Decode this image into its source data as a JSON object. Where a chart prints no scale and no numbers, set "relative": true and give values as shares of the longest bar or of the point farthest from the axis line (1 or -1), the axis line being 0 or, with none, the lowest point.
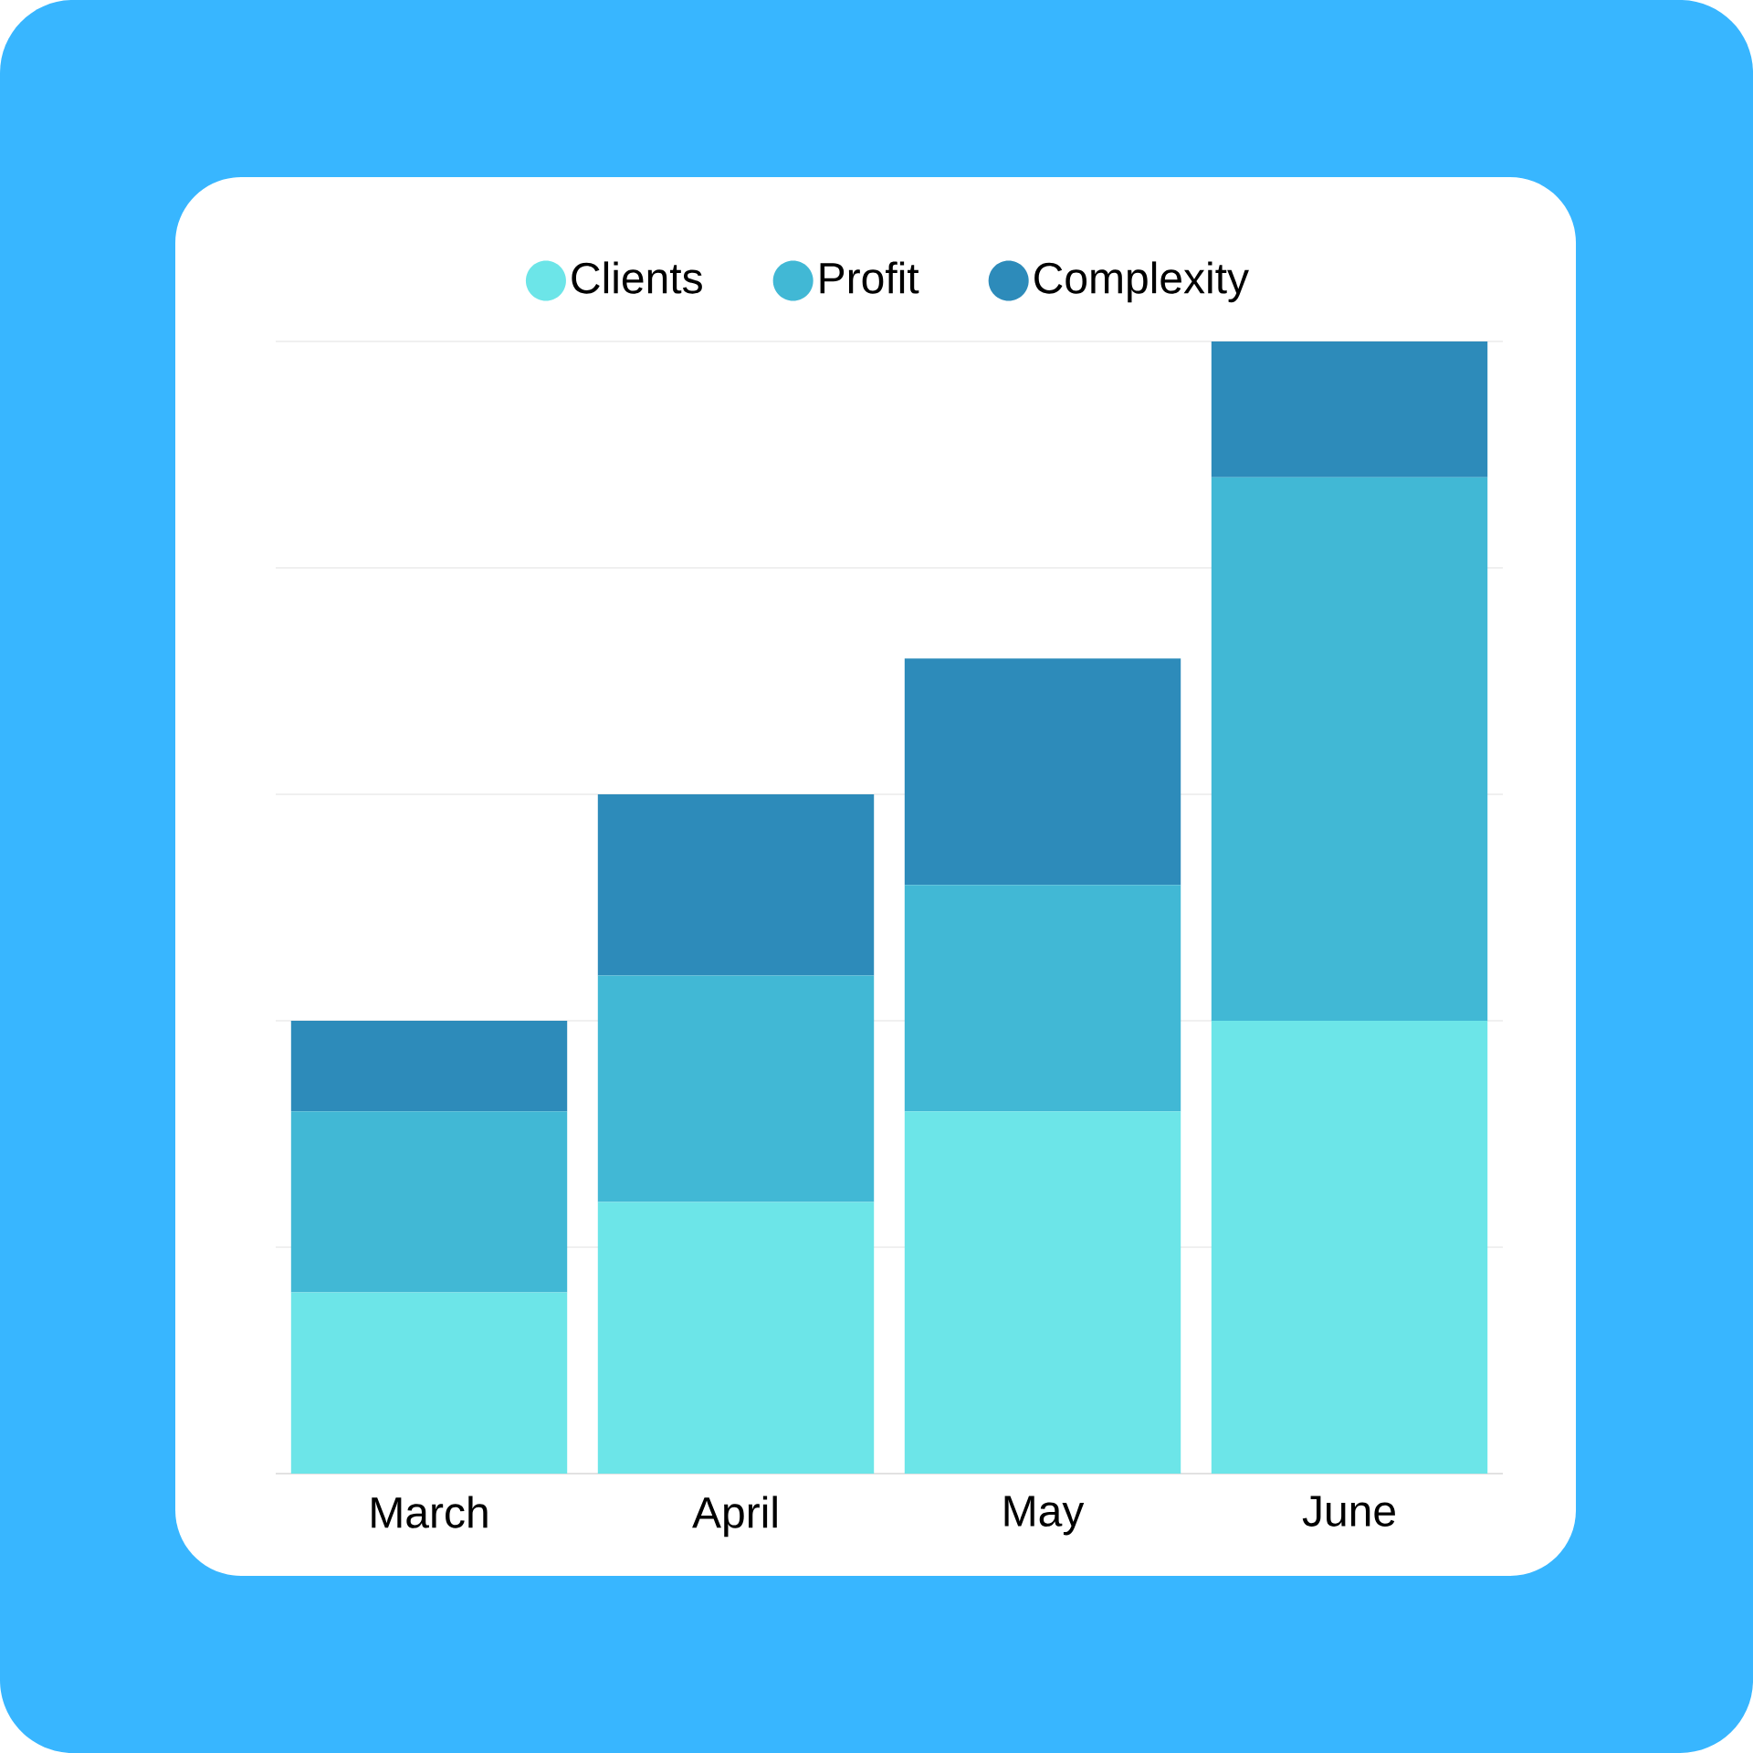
{
  "chart_data": {
    "type": "bar",
    "stacked": true,
    "relative": true,
    "categories": [
      "March",
      "April",
      "May",
      "June"
    ],
    "series": [
      {
        "name": "Clients",
        "color": "#6ce5e8",
        "values": [
          0.16,
          0.24,
          0.32,
          0.4
        ]
      },
      {
        "name": "Profit",
        "color": "#41b8d5",
        "values": [
          0.16,
          0.2,
          0.2,
          0.48
        ]
      },
      {
        "name": "Complexity",
        "color": "#2d8bba",
        "values": [
          0.08,
          0.16,
          0.2,
          0.12
        ]
      }
    ],
    "grid": "y",
    "legend": "top",
    "marker": "circle",
    "tick_labels": "x"
  }
}
